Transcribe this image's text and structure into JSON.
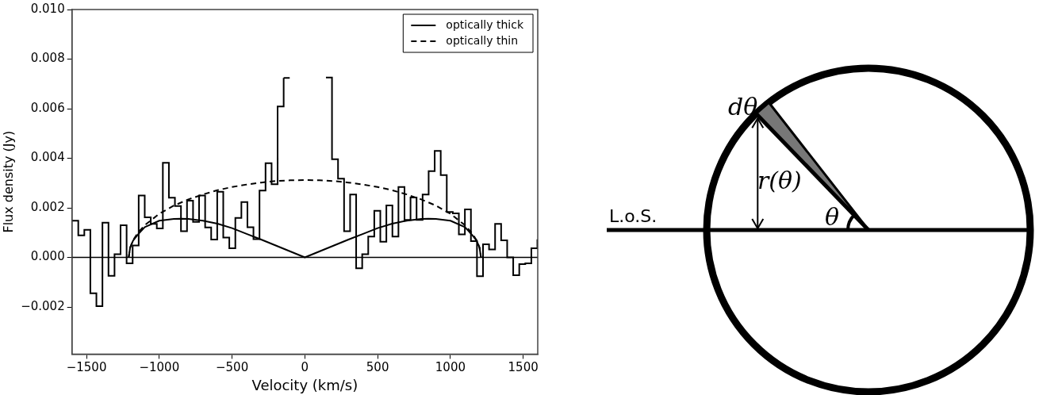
{
  "chart_data": [
    {
      "type": "step",
      "xlabel": "Velocity (km/s)",
      "ylabel": "Flux density (Jy)",
      "color": "#000000",
      "x": [
        -1598,
        -1556.5,
        -1515,
        -1473.5,
        -1432,
        -1390.5,
        -1349,
        -1307.5,
        -1266,
        -1224.5,
        -1183,
        -1141.5,
        -1100,
        -1058.5,
        -1017,
        -975.5,
        -934,
        -892.5,
        -851,
        -809.5,
        -768,
        -726.5,
        -685,
        -643.5,
        -602,
        -560.5,
        -519,
        -477.5,
        -436,
        -394.5,
        -353,
        -311.5,
        -270,
        -228.5,
        -187,
        -145.5,
        -104,
        -62.5,
        -21,
        20.5,
        62,
        103.5,
        145,
        186.5,
        228,
        269.5,
        311,
        352.5,
        394,
        435.5,
        477,
        518.5,
        560,
        601.5,
        643,
        684.5,
        726,
        767.5,
        809,
        850.5,
        892,
        933.5,
        975,
        1016.5,
        1058,
        1099.5,
        1141,
        1182.5,
        1224,
        1265.5,
        1307,
        1348.5,
        1390,
        1431.5,
        1473,
        1514.5,
        1556,
        1597.5
      ],
      "line_style": "solid",
      "values": [
        0.00148,
        0.00089,
        0.00111,
        -0.00145,
        -0.00197,
        0.0014,
        -0.00074,
        0.00013,
        0.0013,
        -0.00024,
        0.00048,
        0.0025,
        0.00162,
        0.00135,
        0.00117,
        0.00382,
        0.00241,
        0.00207,
        0.00106,
        0.00229,
        0.00143,
        0.0025,
        0.00121,
        0.00072,
        0.00265,
        0.0008,
        0.00037,
        0.00159,
        0.00223,
        0.00122,
        0.00074,
        0.0027,
        0.0038,
        0.00295,
        0.00609,
        0.00724,
        null,
        null,
        null,
        null,
        null,
        null,
        0.00726,
        0.00396,
        0.00318,
        0.00106,
        0.00254,
        -0.00044,
        0.00013,
        0.00084,
        0.00188,
        0.00063,
        0.0021,
        0.00084,
        0.00284,
        0.00151,
        0.00242,
        0.00151,
        0.00254,
        0.00348,
        0.0043,
        0.00332,
        0.00183,
        0.00178,
        0.00093,
        0.00194,
        0.00066,
        -0.00076,
        0.00053,
        0.00032,
        0.00135,
        0.00069,
        0,
        -0.00072,
        -0.00027,
        -0.00024,
        0.00037,
        0.00073
      ],
      "series": [
        {
          "name": "optically thick",
          "type": "line",
          "color": "#000000",
          "line_style": "solid",
          "x": [
            -1210,
            -1200,
            -1180,
            -1150,
            -1100,
            -1000,
            -900,
            -850,
            -800,
            -700,
            -600,
            -500,
            -400,
            -300,
            -200,
            -100,
            0,
            100,
            200,
            300,
            400,
            500,
            600,
            700,
            800,
            850,
            900,
            1000,
            1100,
            1150,
            1180,
            1200,
            1210
          ],
          "values": [
            0,
            0.0004,
            0.00068,
            0.0009,
            0.00122,
            0.00148,
            0.00155,
            0.00156,
            0.00155,
            0.00148,
            0.00136,
            0.00118,
            0.00095,
            0.00072,
            0.00048,
            0.00024,
            0,
            0.00024,
            0.00048,
            0.00072,
            0.00095,
            0.00118,
            0.00136,
            0.00148,
            0.00155,
            0.00156,
            0.00155,
            0.00148,
            0.00122,
            0.0009,
            0.00068,
            0.0004,
            0
          ]
        },
        {
          "name": "optically thin",
          "type": "line",
          "color": "#000000",
          "line_style": "dashed",
          "x": [
            -1210,
            -1200,
            -1180,
            -1150,
            -1100,
            -1000,
            -900,
            -800,
            -700,
            -600,
            -500,
            -400,
            -300,
            -200,
            -100,
            0,
            100,
            200,
            300,
            400,
            500,
            600,
            700,
            800,
            900,
            1000,
            1100,
            1150,
            1180,
            1200,
            1210
          ],
          "values": [
            0,
            0.0004,
            0.00069,
            0.00097,
            0.0013,
            0.00176,
            0.00209,
            0.00234,
            0.00254,
            0.00271,
            0.00284,
            0.00294,
            0.00302,
            0.00308,
            0.00311,
            0.00312,
            0.00311,
            0.00308,
            0.00302,
            0.00294,
            0.00284,
            0.00271,
            0.00254,
            0.00234,
            0.00209,
            0.00176,
            0.0013,
            0.00097,
            0.00069,
            0.0004,
            0
          ]
        }
      ],
      "xlim": [
        -1600,
        1600
      ],
      "xticks": [
        {
          "value": -1500,
          "label": "−1500"
        },
        {
          "value": -1000,
          "label": "−1000"
        },
        {
          "value": -500,
          "label": "−500"
        },
        0,
        500,
        1000,
        1500
      ],
      "ylim": [
        -0.0039,
        0.01
      ],
      "yticks": [
        {
          "value": -0.002,
          "label": "−0.002"
        },
        {
          "value": 0,
          "label": "0.000"
        },
        {
          "value": 0.002,
          "label": "0.002"
        },
        {
          "value": 0.004,
          "label": "0.004"
        },
        {
          "value": 0.006,
          "label": "0.006"
        },
        {
          "value": 0.008,
          "label": "0.008"
        },
        {
          "value": 0.01,
          "label": "0.010"
        }
      ],
      "ref_lines": [
        {
          "axis": "y",
          "value": 0,
          "color": "#000000"
        }
      ],
      "legend": "top right"
    },
    {
      "type": "other",
      "annotations": [
        "L.o.S.",
        "dθ",
        "r(θ)",
        "θ"
      ]
    }
  ]
}
